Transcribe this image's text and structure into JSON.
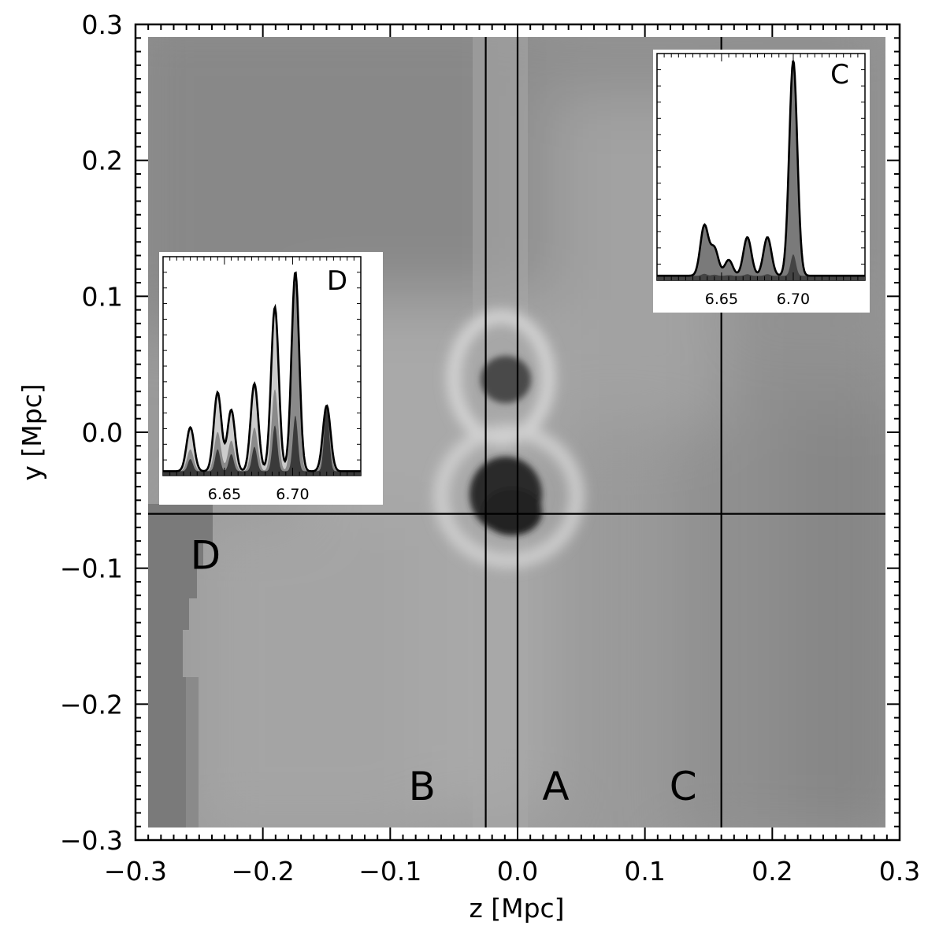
{
  "chart_data": [
    {
      "type": "heatmap",
      "xlabel": "z  [Mpc]",
      "ylabel": "y  [Mpc]",
      "xlim": [
        -0.3,
        0.3
      ],
      "ylim": [
        -0.3,
        0.3
      ],
      "x_ticks": [
        "−0.3",
        "−0.2",
        "−0.1",
        "0.0",
        "0.1",
        "0.2",
        "0.3"
      ],
      "y_ticks": [
        "0.3",
        "0.2",
        "0.1",
        "0.0",
        "−0.1",
        "−0.2",
        "−0.3"
      ],
      "colormap": "grayscale",
      "vertical_lines_z": [
        -0.025,
        0.0,
        0.16
      ],
      "horizontal_lines_y": [
        -0.06
      ],
      "region_labels": [
        {
          "text": "B",
          "z": -0.075,
          "y": -0.26
        },
        {
          "text": "A",
          "z": 0.03,
          "y": -0.26
        },
        {
          "text": "C",
          "z": 0.13,
          "y": -0.26
        },
        {
          "text": "D",
          "z": -0.245,
          "y": -0.09
        }
      ]
    },
    {
      "type": "area",
      "panel": "inset-C",
      "corner_label": "C",
      "x_tick_labels": [
        "6.65",
        "6.70"
      ],
      "x_ticks": [
        6.65,
        6.7
      ],
      "xlim": [
        6.605,
        6.75
      ],
      "ylim": [
        0,
        1.0
      ],
      "peaks_x": [
        6.638,
        6.645,
        6.655,
        6.668,
        6.682,
        6.7
      ],
      "peaks_y": [
        0.22,
        0.12,
        0.07,
        0.17,
        0.17,
        0.95
      ]
    },
    {
      "type": "area",
      "panel": "inset-D",
      "corner_label": "D",
      "x_tick_labels": [
        "6.65",
        "6.70"
      ],
      "x_ticks": [
        6.65,
        6.7
      ],
      "xlim": [
        6.605,
        6.75
      ],
      "ylim": [
        0,
        1.0
      ],
      "peaks_x": [
        6.625,
        6.645,
        6.655,
        6.672,
        6.687,
        6.702,
        6.725
      ],
      "peaks_y": [
        0.2,
        0.36,
        0.28,
        0.4,
        0.75,
        0.91,
        0.3
      ]
    }
  ]
}
